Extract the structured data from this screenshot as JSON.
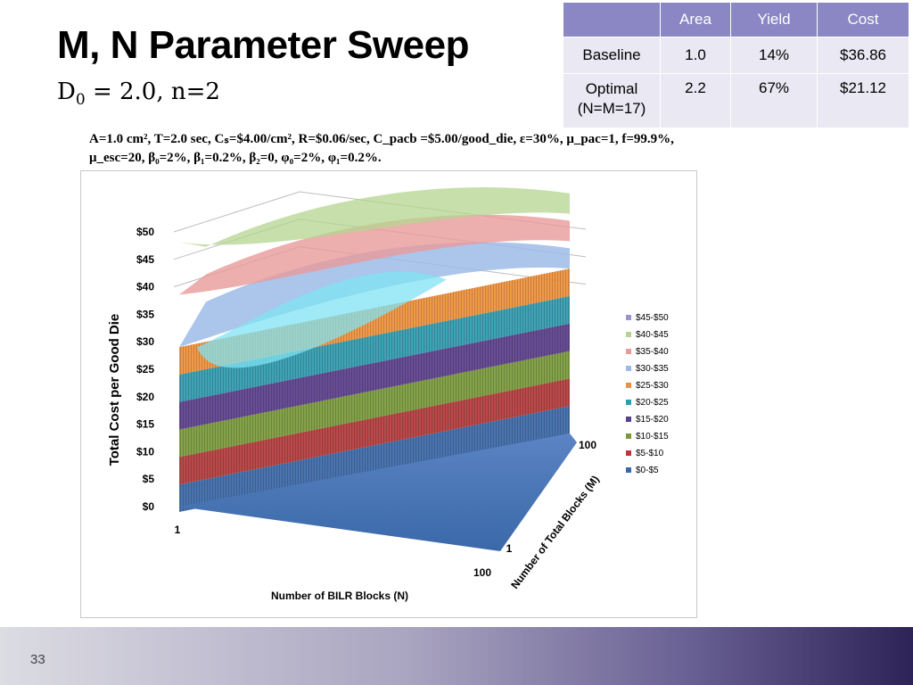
{
  "slide": {
    "title": "M, N Parameter Sweep",
    "subtitle_main": "D",
    "subtitle_sub": "0",
    "subtitle_rest": " = 2.0, n=2",
    "param_line1": "A=1.0 cm², T=2.0 sec, Cₛ=$4.00/cm², R=$0.06/sec, C_pacb =$5.00/good_die, ε=30%, μ_pac=1, f=99.9%,",
    "param_line2": "μ_esc=20, β₀=2%, β₁=0.2%, β₂=0, φ₀=2%, φ₁=0.2%.",
    "slide_number": "33"
  },
  "table": {
    "headers": [
      "",
      "Area",
      "Yield",
      "Cost"
    ],
    "rows": [
      [
        "Baseline",
        "1.0",
        "14%",
        "$36.86"
      ],
      [
        "Optimal\n(N=M=17)",
        "2.2",
        "67%",
        "$21.12"
      ]
    ]
  },
  "chart_data": {
    "type": "surface",
    "ylabel": "Total Cost per Good Die",
    "xlabel": "Number of BILR Blocks (N)",
    "zlabel": "Number of Total Blocks (M)",
    "y_ticks": [
      "$0",
      "$5",
      "$10",
      "$15",
      "$20",
      "$25",
      "$30",
      "$35",
      "$40",
      "$45",
      "$50"
    ],
    "ylim": [
      0,
      50
    ],
    "x_ticks": [
      "1",
      "100"
    ],
    "depth_ticks": [
      "1",
      "100"
    ],
    "legend_position": "right",
    "bands": [
      {
        "name": "$45-$50",
        "color": "#9b93c9"
      },
      {
        "name": "$40-$45",
        "color": "#b4d48f"
      },
      {
        "name": "$35-$40",
        "color": "#e89a9a"
      },
      {
        "name": "$30-$35",
        "color": "#9dbbe6"
      },
      {
        "name": "$25-$30",
        "color": "#f0913a"
      },
      {
        "name": "$20-$25",
        "color": "#2f9bb0"
      },
      {
        "name": "$15-$20",
        "color": "#5b3e8c"
      },
      {
        "name": "$10-$15",
        "color": "#7a9a3a"
      },
      {
        "name": "$5-$10",
        "color": "#b43a3a"
      },
      {
        "name": "$0-$5",
        "color": "#3a68a8"
      }
    ]
  }
}
